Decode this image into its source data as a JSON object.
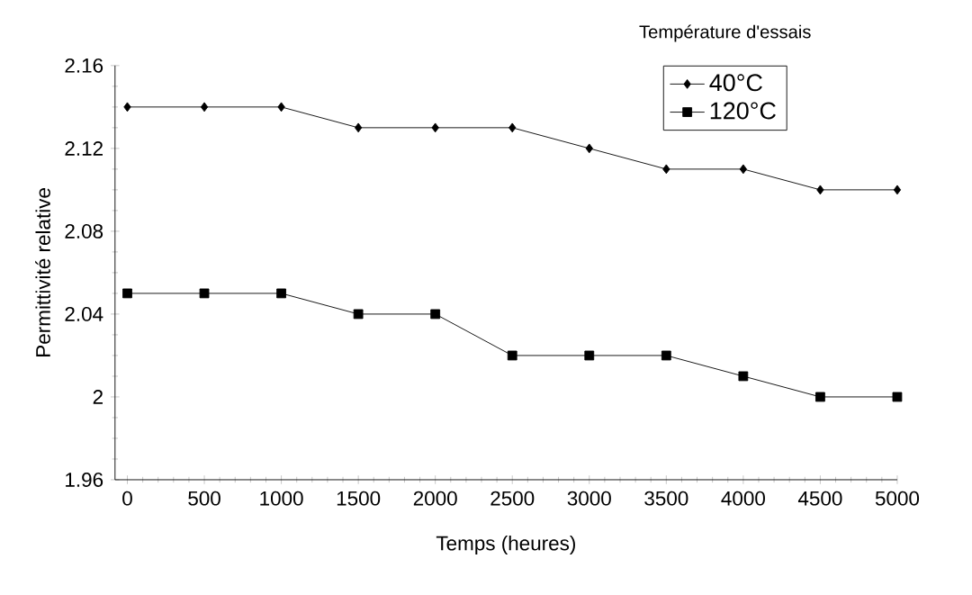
{
  "chart_data": {
    "type": "line",
    "xlabel": "Temps (heures)",
    "ylabel": "Permittivité relative",
    "legend_title": "Température d'essais",
    "legend": "top right",
    "x": [
      0,
      500,
      1000,
      1500,
      2000,
      2500,
      3000,
      3500,
      4000,
      4500,
      5000
    ],
    "xlim": [
      -80,
      5000
    ],
    "xticks": [
      0,
      500,
      1000,
      1500,
      2000,
      2500,
      3000,
      3500,
      4000,
      4500,
      5000
    ],
    "ylim": [
      1.96,
      2.16
    ],
    "yticks": [
      1.96,
      {
        "value": 2,
        "label": "2"
      },
      2.04,
      2.08,
      2.12,
      2.16
    ],
    "grid": false,
    "series": [
      {
        "name": "40°C",
        "color": "#000000",
        "marker": "diamond",
        "values": [
          2.14,
          2.14,
          2.14,
          2.13,
          2.13,
          2.13,
          2.12,
          2.11,
          2.11,
          2.1,
          2.1
        ]
      },
      {
        "name": "120°C",
        "color": "#000000",
        "marker": "square",
        "values": [
          2.05,
          2.05,
          2.05,
          2.04,
          2.04,
          2.02,
          2.02,
          2.02,
          2.01,
          2.0,
          2.0
        ]
      }
    ]
  }
}
